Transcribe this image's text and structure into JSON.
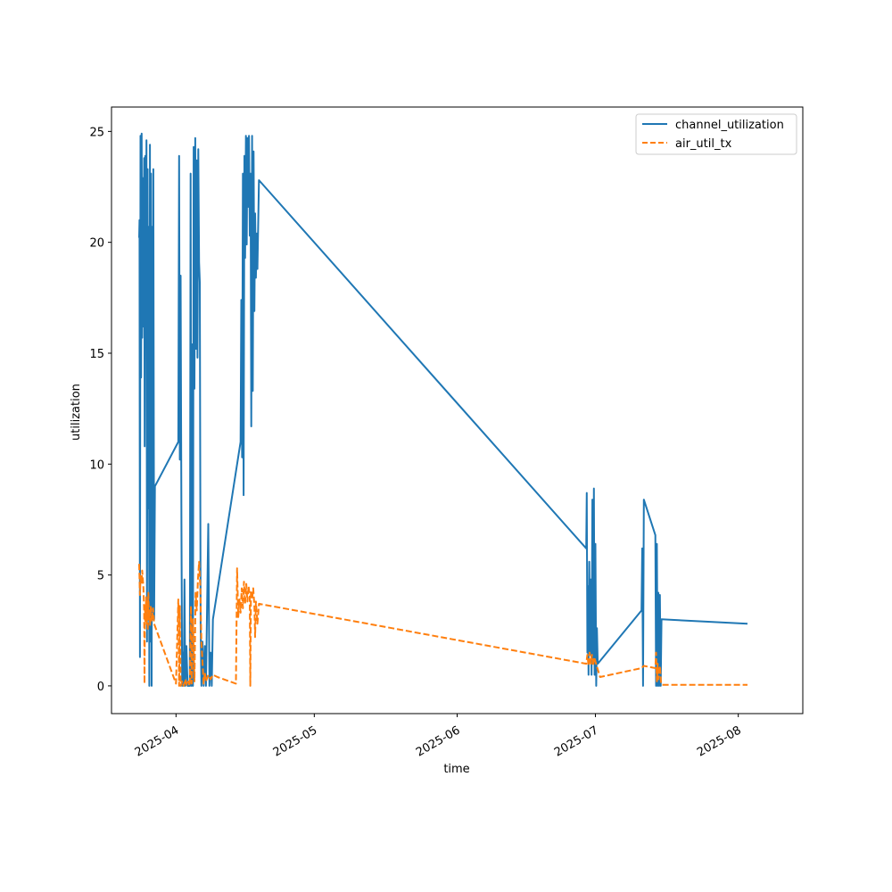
{
  "chart_data": {
    "type": "line",
    "title": "",
    "xlabel": "time",
    "ylabel": "utilization",
    "x_axis_type": "date",
    "xlim": [
      "2025-03-18",
      "2025-08-15"
    ],
    "ylim": [
      -1.25,
      26.1
    ],
    "x_ticks": [
      {
        "date": "2025-04-01",
        "label": "2025-04"
      },
      {
        "date": "2025-05-01",
        "label": "2025-05"
      },
      {
        "date": "2025-06-01",
        "label": "2025-06"
      },
      {
        "date": "2025-07-01",
        "label": "2025-07"
      },
      {
        "date": "2025-08-01",
        "label": "2025-08"
      }
    ],
    "y_ticks": [
      0,
      5,
      10,
      15,
      20,
      25
    ],
    "grid": false,
    "legend_position": "upper right",
    "series": [
      {
        "name": "channel_utilization",
        "style": "solid",
        "color": "#1f77b4",
        "points": [
          [
            "2025-03-24T00:00",
            20.2
          ],
          [
            "2025-03-24T02:00",
            21.0
          ],
          [
            "2025-03-24T04:00",
            1.3
          ],
          [
            "2025-03-24T07:00",
            24.8
          ],
          [
            "2025-03-24T10:00",
            13.9
          ],
          [
            "2025-03-24T13:00",
            24.9
          ],
          [
            "2025-03-24T16:00",
            15.7
          ],
          [
            "2025-03-24T19:00",
            22.9
          ],
          [
            "2025-03-24T22:00",
            16.2
          ],
          [
            "2025-03-25T02:00",
            23.8
          ],
          [
            "2025-03-25T05:00",
            10.8
          ],
          [
            "2025-03-25T08:00",
            23.9
          ],
          [
            "2025-03-25T11:00",
            16.5
          ],
          [
            "2025-03-25T14:00",
            24.6
          ],
          [
            "2025-03-25T17:00",
            2.0
          ],
          [
            "2025-03-25T20:00",
            23.3
          ],
          [
            "2025-03-25T23:00",
            8.0
          ],
          [
            "2025-03-26T02:00",
            20.7
          ],
          [
            "2025-03-26T05:00",
            0.0
          ],
          [
            "2025-03-26T08:00",
            24.4
          ],
          [
            "2025-03-26T11:00",
            2.0
          ],
          [
            "2025-03-26T14:00",
            23.1
          ],
          [
            "2025-03-26T17:00",
            0.0
          ],
          [
            "2025-03-26T20:00",
            20.7
          ],
          [
            "2025-03-26T23:00",
            3.0
          ],
          [
            "2025-03-27T02:00",
            23.3
          ],
          [
            "2025-03-27T06:00",
            3.0
          ],
          [
            "2025-03-27T10:00",
            9.0
          ],
          [
            "2025-04-01T12:00",
            11.0
          ],
          [
            "2025-04-01T16:00",
            23.9
          ],
          [
            "2025-04-01T20:00",
            10.2
          ],
          [
            "2025-04-02T00:00",
            18.5
          ],
          [
            "2025-04-02T04:00",
            7.4
          ],
          [
            "2025-04-02T08:00",
            0.0
          ],
          [
            "2025-04-02T12:00",
            1.5
          ],
          [
            "2025-04-02T16:00",
            0.0
          ],
          [
            "2025-04-02T20:00",
            4.8
          ],
          [
            "2025-04-03T00:00",
            0.0
          ],
          [
            "2025-04-03T06:00",
            1.8
          ],
          [
            "2025-04-03T12:00",
            0.0
          ],
          [
            "2025-04-04T00:00",
            0.0
          ],
          [
            "2025-04-04T04:00",
            23.1
          ],
          [
            "2025-04-04T08:00",
            0.0
          ],
          [
            "2025-04-04T12:00",
            15.4
          ],
          [
            "2025-04-04T16:00",
            0.0
          ],
          [
            "2025-04-04T20:00",
            24.3
          ],
          [
            "2025-04-05T00:00",
            13.4
          ],
          [
            "2025-04-05T04:00",
            24.7
          ],
          [
            "2025-04-05T08:00",
            15.2
          ],
          [
            "2025-04-05T12:00",
            23.7
          ],
          [
            "2025-04-05T16:00",
            14.8
          ],
          [
            "2025-04-05T20:00",
            24.2
          ],
          [
            "2025-04-06T00:00",
            19.1
          ],
          [
            "2025-04-06T04:00",
            18.2
          ],
          [
            "2025-04-06T08:00",
            2.8
          ],
          [
            "2025-04-06T12:00",
            0.0
          ],
          [
            "2025-04-06T18:00",
            2.0
          ],
          [
            "2025-04-07T00:00",
            0.0
          ],
          [
            "2025-04-07T06:00",
            1.8
          ],
          [
            "2025-04-07T12:00",
            0.0
          ],
          [
            "2025-04-08T00:00",
            7.3
          ],
          [
            "2025-04-08T06:00",
            0.0
          ],
          [
            "2025-04-08T12:00",
            1.5
          ],
          [
            "2025-04-08T18:00",
            0.0
          ],
          [
            "2025-04-09T00:00",
            3.0
          ],
          [
            "2025-04-15T00:00",
            11.0
          ],
          [
            "2025-04-15T04:00",
            17.4
          ],
          [
            "2025-04-15T08:00",
            10.3
          ],
          [
            "2025-04-15T12:00",
            23.1
          ],
          [
            "2025-04-15T16:00",
            8.6
          ],
          [
            "2025-04-15T20:00",
            23.9
          ],
          [
            "2025-04-16T00:00",
            19.3
          ],
          [
            "2025-04-16T04:00",
            24.8
          ],
          [
            "2025-04-16T08:00",
            19.9
          ],
          [
            "2025-04-16T12:00",
            24.7
          ],
          [
            "2025-04-16T16:00",
            21.6
          ],
          [
            "2025-04-16T20:00",
            24.8
          ],
          [
            "2025-04-17T00:00",
            20.3
          ],
          [
            "2025-04-17T04:00",
            23.1
          ],
          [
            "2025-04-17T08:00",
            11.7
          ],
          [
            "2025-04-17T12:00",
            24.8
          ],
          [
            "2025-04-17T16:00",
            13.3
          ],
          [
            "2025-04-17T20:00",
            24.1
          ],
          [
            "2025-04-18T00:00",
            16.9
          ],
          [
            "2025-04-18T04:00",
            21.3
          ],
          [
            "2025-04-18T08:00",
            18.4
          ],
          [
            "2025-04-18T12:00",
            20.4
          ],
          [
            "2025-04-18T16:00",
            18.8
          ],
          [
            "2025-04-19T00:00",
            22.8
          ],
          [
            "2025-06-29T00:00",
            6.2
          ],
          [
            "2025-06-29T03:00",
            8.7
          ],
          [
            "2025-06-29T06:00",
            1.5
          ],
          [
            "2025-06-29T09:00",
            4.5
          ],
          [
            "2025-06-29T12:00",
            0.5
          ],
          [
            "2025-06-29T16:00",
            5.6
          ],
          [
            "2025-06-29T20:00",
            1.4
          ],
          [
            "2025-06-30T00:00",
            4.8
          ],
          [
            "2025-06-30T04:00",
            0.5
          ],
          [
            "2025-06-30T08:00",
            8.4
          ],
          [
            "2025-06-30T12:00",
            1.2
          ],
          [
            "2025-06-30T16:00",
            8.9
          ],
          [
            "2025-06-30T20:00",
            0.5
          ],
          [
            "2025-07-01T00:00",
            6.4
          ],
          [
            "2025-07-01T04:00",
            0.0
          ],
          [
            "2025-07-01T08:00",
            2.6
          ],
          [
            "2025-07-01T12:00",
            1.0
          ],
          [
            "2025-07-11T00:00",
            3.4
          ],
          [
            "2025-07-11T04:00",
            6.2
          ],
          [
            "2025-07-11T08:00",
            0.0
          ],
          [
            "2025-07-11T12:00",
            8.4
          ],
          [
            "2025-07-14T00:00",
            6.8
          ],
          [
            "2025-07-14T04:00",
            0.0
          ],
          [
            "2025-07-14T08:00",
            6.4
          ],
          [
            "2025-07-14T12:00",
            0.0
          ],
          [
            "2025-07-14T16:00",
            4.2
          ],
          [
            "2025-07-14T20:00",
            0.0
          ],
          [
            "2025-07-15T00:00",
            4.1
          ],
          [
            "2025-07-15T04:00",
            0.0
          ],
          [
            "2025-07-15T08:00",
            3.0
          ],
          [
            "2025-08-03T00:00",
            2.8
          ]
        ]
      },
      {
        "name": "air_util_tx",
        "style": "dashed",
        "color": "#ff7f0e",
        "points": [
          [
            "2025-03-24T00:00",
            5.5
          ],
          [
            "2025-03-24T04:00",
            4.1
          ],
          [
            "2025-03-24T08:00",
            5.0
          ],
          [
            "2025-03-24T12:00",
            4.6
          ],
          [
            "2025-03-24T16:00",
            5.2
          ],
          [
            "2025-03-24T22:00",
            4.5
          ],
          [
            "2025-03-25T02:00",
            3.4
          ],
          [
            "2025-03-25T04:00",
            0.1
          ],
          [
            "2025-03-25T06:00",
            3.6
          ],
          [
            "2025-03-25T09:00",
            2.9
          ],
          [
            "2025-03-25T12:00",
            4.0
          ],
          [
            "2025-03-25T15:00",
            2.8
          ],
          [
            "2025-03-25T18:00",
            3.8
          ],
          [
            "2025-03-25T21:00",
            2.5
          ],
          [
            "2025-03-26T00:00",
            4.2
          ],
          [
            "2025-03-26T03:00",
            3.0
          ],
          [
            "2025-03-26T06:00",
            3.4
          ],
          [
            "2025-03-26T09:00",
            2.7
          ],
          [
            "2025-03-26T12:00",
            3.6
          ],
          [
            "2025-03-26T18:00",
            2.9
          ],
          [
            "2025-03-27T00:00",
            3.5
          ],
          [
            "2025-03-27T06:00",
            2.8
          ],
          [
            "2025-04-01T00:00",
            0.1
          ],
          [
            "2025-04-01T12:00",
            3.9
          ],
          [
            "2025-04-01T16:00",
            0.0
          ],
          [
            "2025-04-01T20:00",
            3.6
          ],
          [
            "2025-04-02T00:00",
            0.0
          ],
          [
            "2025-04-02T08:00",
            0.2
          ],
          [
            "2025-04-02T16:00",
            0.0
          ],
          [
            "2025-04-03T00:00",
            0.3
          ],
          [
            "2025-04-03T08:00",
            0.0
          ],
          [
            "2025-04-03T16:00",
            0.2
          ],
          [
            "2025-04-04T00:00",
            0.0
          ],
          [
            "2025-04-04T06:00",
            3.6
          ],
          [
            "2025-04-04T10:00",
            0.1
          ],
          [
            "2025-04-04T16:00",
            3.0
          ],
          [
            "2025-04-05T00:00",
            0.2
          ],
          [
            "2025-04-05T06:00",
            4.2
          ],
          [
            "2025-04-05T12:00",
            3.4
          ],
          [
            "2025-04-05T18:00",
            4.8
          ],
          [
            "2025-04-06T00:00",
            5.6
          ],
          [
            "2025-04-06T06:00",
            4.5
          ],
          [
            "2025-04-06T12:00",
            2.0
          ],
          [
            "2025-04-07T00:00",
            0.1
          ],
          [
            "2025-04-07T06:00",
            0.6
          ],
          [
            "2025-04-07T12:00",
            0.2
          ],
          [
            "2025-04-08T00:00",
            0.5
          ],
          [
            "2025-04-08T12:00",
            0.3
          ],
          [
            "2025-04-09T00:00",
            0.5
          ],
          [
            "2025-04-10T00:00",
            0.4
          ],
          [
            "2025-04-14T00:00",
            0.1
          ],
          [
            "2025-04-14T06:00",
            5.3
          ],
          [
            "2025-04-14T12:00",
            3.1
          ],
          [
            "2025-04-14T18:00",
            3.9
          ],
          [
            "2025-04-15T00:00",
            3.3
          ],
          [
            "2025-04-15T06:00",
            4.4
          ],
          [
            "2025-04-15T12:00",
            3.5
          ],
          [
            "2025-04-15T18:00",
            4.7
          ],
          [
            "2025-04-16T00:00",
            3.7
          ],
          [
            "2025-04-16T06:00",
            4.6
          ],
          [
            "2025-04-16T12:00",
            3.8
          ],
          [
            "2025-04-16T18:00",
            4.5
          ],
          [
            "2025-04-17T00:00",
            4.0
          ],
          [
            "2025-04-17T03:00",
            0.0
          ],
          [
            "2025-04-17T06:00",
            4.3
          ],
          [
            "2025-04-17T12:00",
            3.9
          ],
          [
            "2025-04-17T18:00",
            4.4
          ],
          [
            "2025-04-18T00:00",
            3.6
          ],
          [
            "2025-04-18T04:00",
            2.2
          ],
          [
            "2025-04-18T08:00",
            3.8
          ],
          [
            "2025-04-18T16:00",
            2.8
          ],
          [
            "2025-04-19T00:00",
            3.7
          ],
          [
            "2025-06-29T00:00",
            1.0
          ],
          [
            "2025-06-29T06:00",
            1.4
          ],
          [
            "2025-06-29T12:00",
            0.9
          ],
          [
            "2025-06-29T18:00",
            1.5
          ],
          [
            "2025-06-30T00:00",
            1.0
          ],
          [
            "2025-06-30T06:00",
            1.4
          ],
          [
            "2025-06-30T12:00",
            0.9
          ],
          [
            "2025-06-30T18:00",
            1.3
          ],
          [
            "2025-07-01T00:00",
            1.1
          ],
          [
            "2025-07-02T00:00",
            0.4
          ],
          [
            "2025-07-11T00:00",
            0.8
          ],
          [
            "2025-07-11T12:00",
            0.9
          ],
          [
            "2025-07-14T00:00",
            0.8
          ],
          [
            "2025-07-14T04:00",
            1.5
          ],
          [
            "2025-07-14T08:00",
            0.2
          ],
          [
            "2025-07-14T12:00",
            1.0
          ],
          [
            "2025-07-14T16:00",
            0.3
          ],
          [
            "2025-07-15T00:00",
            0.9
          ],
          [
            "2025-07-15T06:00",
            0.1
          ],
          [
            "2025-07-15T12:00",
            0.05
          ],
          [
            "2025-08-03T00:00",
            0.05
          ]
        ]
      }
    ]
  }
}
